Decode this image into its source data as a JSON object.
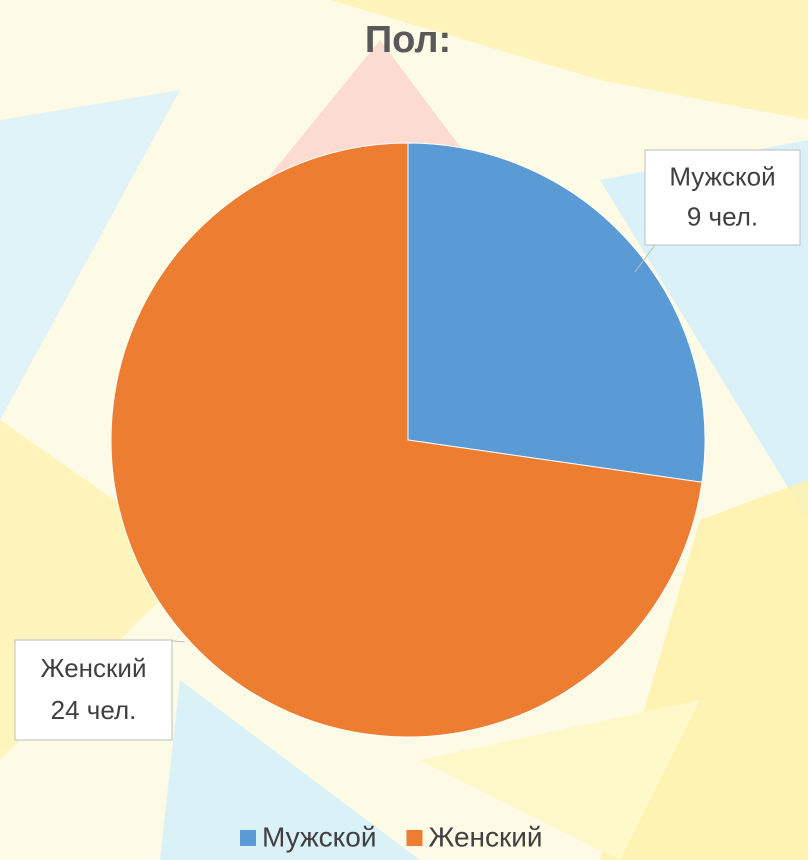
{
  "chart_data": {
    "type": "pie",
    "title": "Пол:",
    "categories": [
      "Мужской",
      "Женский"
    ],
    "values": [
      9,
      24
    ],
    "value_labels": [
      "9 чел.",
      "24 чел."
    ],
    "colors": [
      "#5b9bd5",
      "#ed7d31"
    ],
    "legend": "bottom"
  }
}
